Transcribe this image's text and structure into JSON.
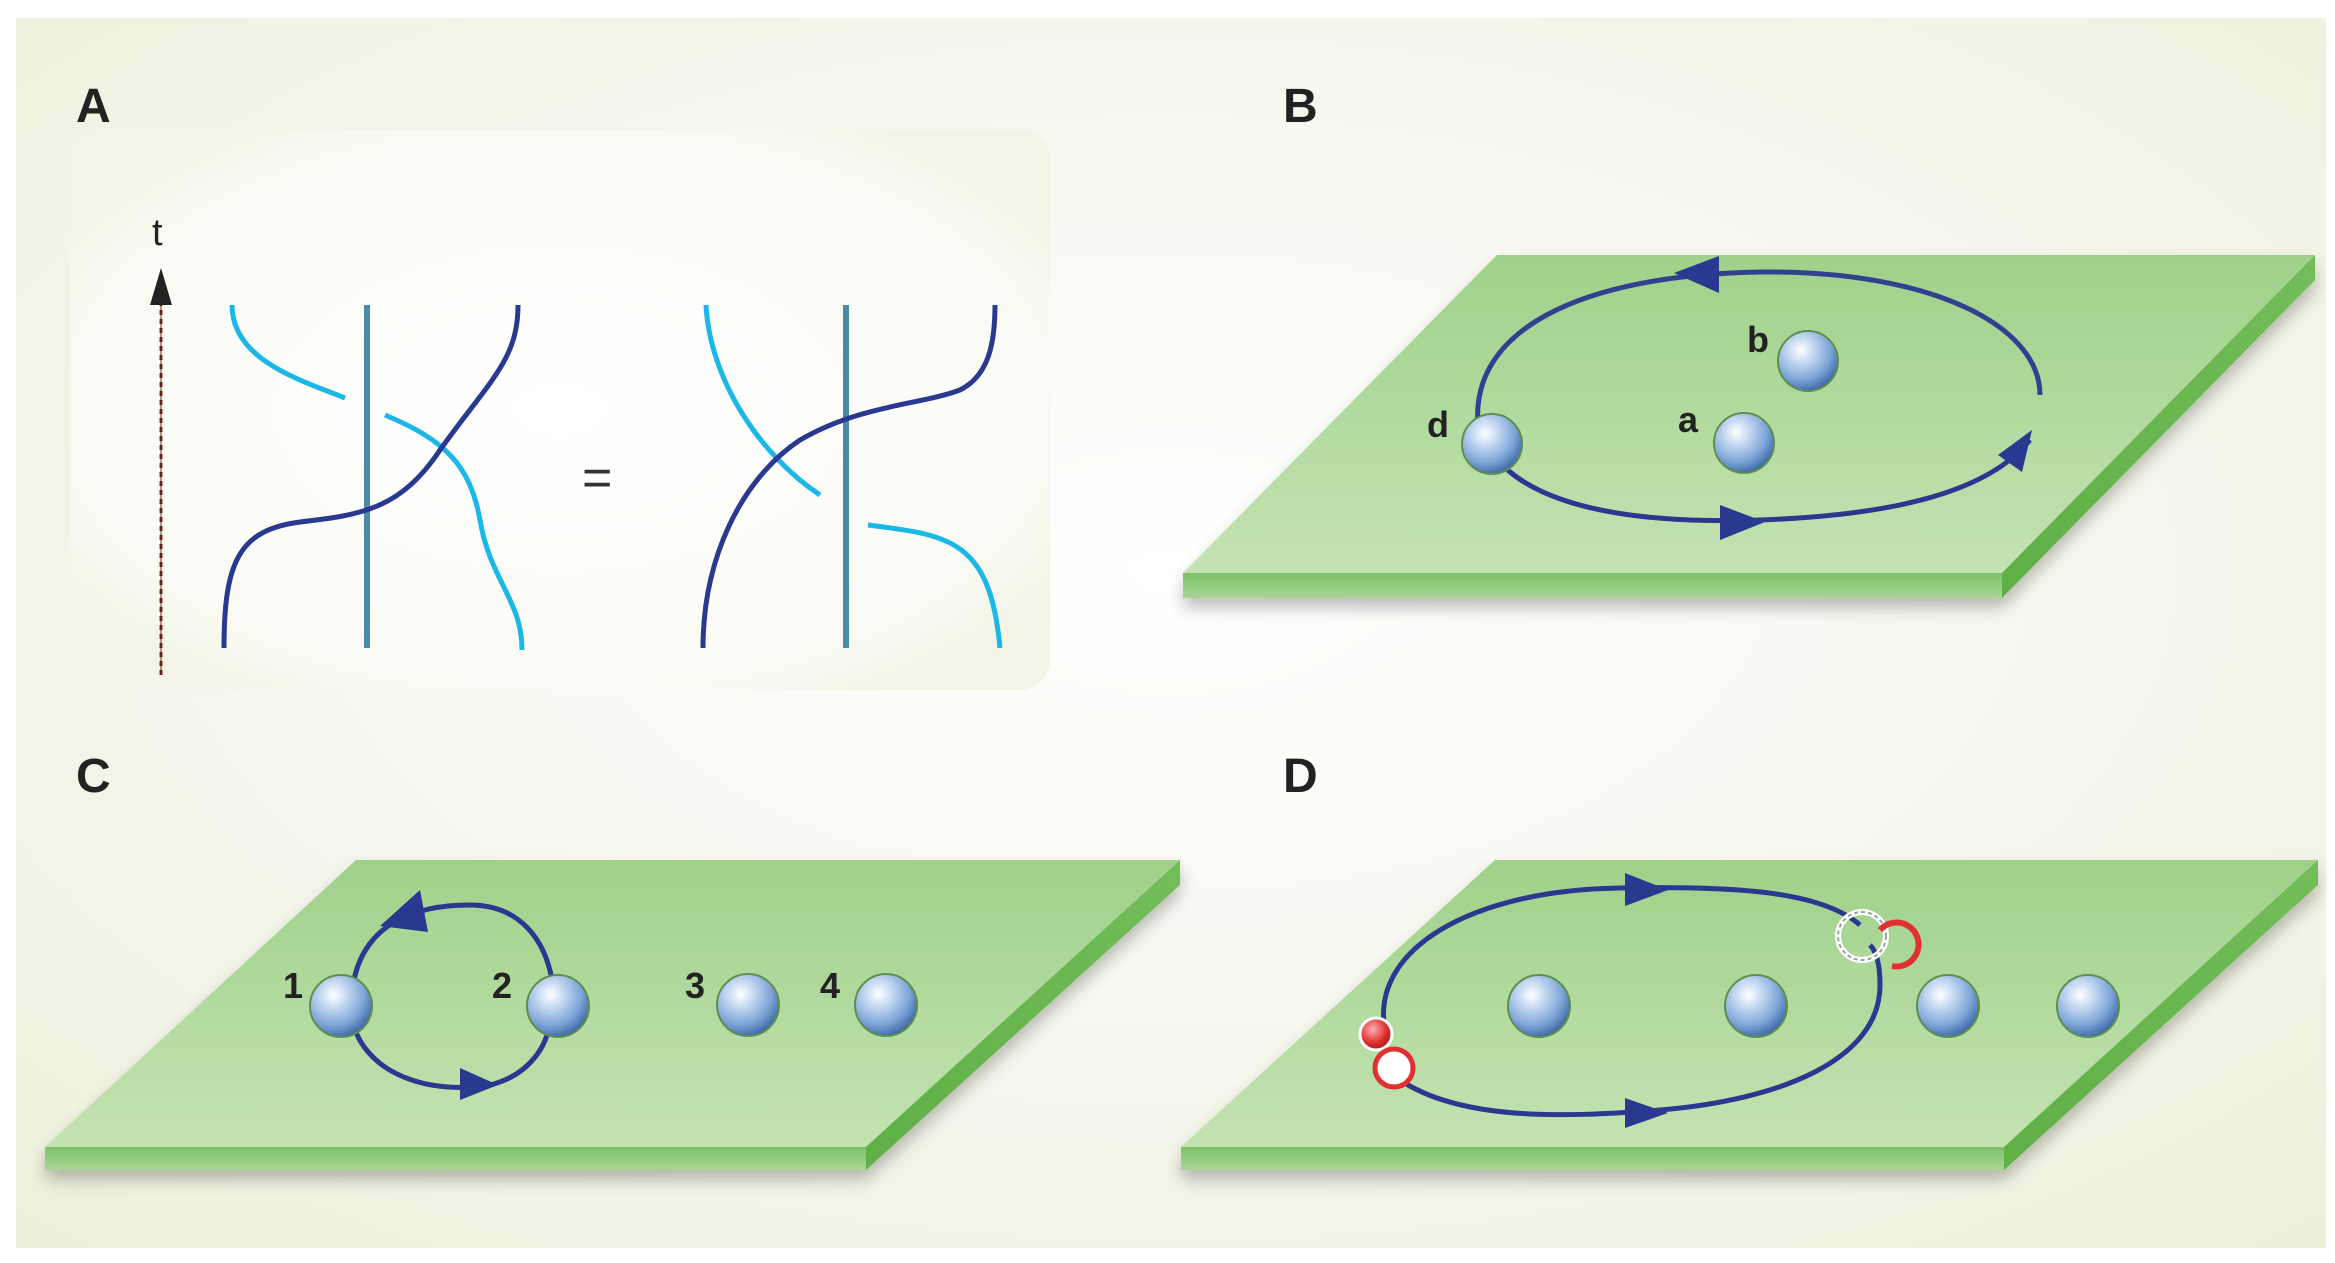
{
  "panels": {
    "a": {
      "label": "A",
      "time_axis_label": "t",
      "equals_sign": "="
    },
    "b": {
      "label": "B",
      "particles": [
        "a",
        "b",
        "d"
      ]
    },
    "c": {
      "label": "C",
      "particles": [
        "1",
        "2",
        "3",
        "4"
      ]
    },
    "d": {
      "label": "D"
    }
  },
  "colors": {
    "background": "#f1f3e3",
    "plane_top": "#a9d696",
    "plane_edge": "#77c05d",
    "dark_blue_strand": "#2a3990",
    "light_blue_strand": "#1bb7e6",
    "vertical_strand": "#4b8aa8",
    "particle": "#7fa7d8",
    "path_arrow": "#2a3990",
    "red_marker": "#e03030"
  }
}
